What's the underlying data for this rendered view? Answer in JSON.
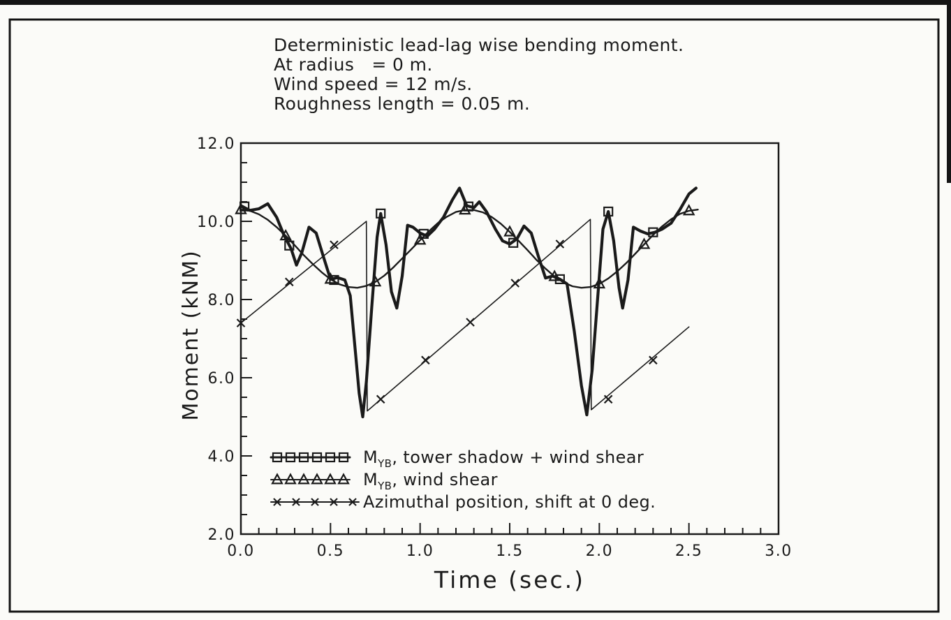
{
  "colors": {
    "ink": "#1a1a1a",
    "paper": "#fbfbf8"
  },
  "chart_data": {
    "type": "line",
    "title_lines": [
      "Deterministic lead-lag wise bending moment.",
      "At radius   = 0 m.",
      "Wind speed = 12 m/s.",
      "Roughness length = 0.05 m."
    ],
    "xlabel": "Time  (sec.)",
    "ylabel": "Moment  (kNM)",
    "xlim": [
      0.0,
      3.0
    ],
    "ylim": [
      2.0,
      12.0
    ],
    "x_major_ticks": [
      0.0,
      0.5,
      1.0,
      1.5,
      2.0,
      2.5,
      3.0
    ],
    "x_tick_labels": [
      "0.0",
      "0.5",
      "1.0",
      "1.5",
      "2.0",
      "2.5",
      "3.0"
    ],
    "x_minor_step": 0.1,
    "y_major_ticks": [
      2.0,
      4.0,
      6.0,
      8.0,
      10.0,
      12.0
    ],
    "y_tick_labels": [
      "2.0",
      "4.0",
      "6.0",
      "8.0",
      "10.0",
      "12.0"
    ],
    "y_minor_step": 0.5,
    "grid": false,
    "legend_position": "lower-left-inside",
    "series": [
      {
        "name": "MYB, tower shadow + wind shear",
        "label_pre": "M",
        "label_sub": "YB",
        "label_post": ", tower shadow + wind shear",
        "marker": "square",
        "line_width": 4.2,
        "points": [
          [
            0.0,
            10.4
          ],
          [
            0.05,
            10.28
          ],
          [
            0.1,
            10.32
          ],
          [
            0.15,
            10.45
          ],
          [
            0.2,
            10.1
          ],
          [
            0.24,
            9.65
          ],
          [
            0.28,
            9.3
          ],
          [
            0.31,
            8.88
          ],
          [
            0.34,
            9.2
          ],
          [
            0.38,
            9.85
          ],
          [
            0.42,
            9.7
          ],
          [
            0.46,
            9.1
          ],
          [
            0.5,
            8.52
          ],
          [
            0.54,
            8.56
          ],
          [
            0.58,
            8.5
          ],
          [
            0.61,
            8.1
          ],
          [
            0.64,
            6.6
          ],
          [
            0.66,
            5.6
          ],
          [
            0.68,
            5.0
          ],
          [
            0.7,
            5.9
          ],
          [
            0.73,
            7.8
          ],
          [
            0.76,
            9.6
          ],
          [
            0.78,
            10.2
          ],
          [
            0.81,
            9.4
          ],
          [
            0.84,
            8.2
          ],
          [
            0.87,
            7.78
          ],
          [
            0.9,
            8.6
          ],
          [
            0.93,
            9.9
          ],
          [
            0.96,
            9.85
          ],
          [
            1.0,
            9.7
          ],
          [
            1.04,
            9.62
          ],
          [
            1.08,
            9.8
          ],
          [
            1.13,
            10.1
          ],
          [
            1.18,
            10.55
          ],
          [
            1.22,
            10.85
          ],
          [
            1.26,
            10.4
          ],
          [
            1.3,
            10.35
          ],
          [
            1.33,
            10.5
          ],
          [
            1.37,
            10.25
          ],
          [
            1.42,
            9.8
          ],
          [
            1.46,
            9.5
          ],
          [
            1.5,
            9.42
          ],
          [
            1.54,
            9.55
          ],
          [
            1.58,
            9.88
          ],
          [
            1.62,
            9.7
          ],
          [
            1.66,
            9.1
          ],
          [
            1.7,
            8.55
          ],
          [
            1.74,
            8.6
          ],
          [
            1.78,
            8.52
          ],
          [
            1.82,
            8.4
          ],
          [
            1.86,
            7.2
          ],
          [
            1.9,
            5.8
          ],
          [
            1.93,
            5.05
          ],
          [
            1.96,
            6.2
          ],
          [
            1.99,
            8.0
          ],
          [
            2.02,
            9.8
          ],
          [
            2.05,
            10.25
          ],
          [
            2.08,
            9.5
          ],
          [
            2.11,
            8.3
          ],
          [
            2.13,
            7.78
          ],
          [
            2.16,
            8.5
          ],
          [
            2.19,
            9.85
          ],
          [
            2.23,
            9.75
          ],
          [
            2.27,
            9.68
          ],
          [
            2.31,
            9.72
          ],
          [
            2.35,
            9.8
          ],
          [
            2.4,
            9.95
          ],
          [
            2.45,
            10.3
          ],
          [
            2.5,
            10.7
          ],
          [
            2.54,
            10.85
          ]
        ],
        "marker_points": [
          [
            0.02,
            10.38
          ],
          [
            0.27,
            9.38
          ],
          [
            0.52,
            8.5
          ],
          [
            0.78,
            10.2
          ],
          [
            1.02,
            9.68
          ],
          [
            1.27,
            10.38
          ],
          [
            1.52,
            9.45
          ],
          [
            1.78,
            8.52
          ],
          [
            2.05,
            10.25
          ],
          [
            2.3,
            9.72
          ]
        ]
      },
      {
        "name": "MYB, wind shear",
        "label_pre": "M",
        "label_sub": "YB",
        "label_post": ", wind shear",
        "marker": "triangle",
        "line_width": 2.4,
        "points": [
          [
            0.0,
            10.3
          ],
          [
            0.05,
            10.27
          ],
          [
            0.1,
            10.18
          ],
          [
            0.15,
            10.04
          ],
          [
            0.2,
            9.85
          ],
          [
            0.25,
            9.63
          ],
          [
            0.3,
            9.39
          ],
          [
            0.35,
            9.14
          ],
          [
            0.4,
            8.91
          ],
          [
            0.45,
            8.7
          ],
          [
            0.5,
            8.52
          ],
          [
            0.55,
            8.39
          ],
          [
            0.6,
            8.32
          ],
          [
            0.65,
            8.3
          ],
          [
            0.7,
            8.35
          ],
          [
            0.75,
            8.45
          ],
          [
            0.8,
            8.61
          ],
          [
            0.85,
            8.82
          ],
          [
            0.9,
            9.05
          ],
          [
            0.95,
            9.28
          ],
          [
            1.0,
            9.52
          ],
          [
            1.05,
            9.75
          ],
          [
            1.1,
            9.96
          ],
          [
            1.15,
            10.12
          ],
          [
            1.2,
            10.24
          ],
          [
            1.25,
            10.29
          ],
          [
            1.3,
            10.29
          ],
          [
            1.35,
            10.23
          ],
          [
            1.4,
            10.11
          ],
          [
            1.45,
            9.94
          ],
          [
            1.5,
            9.73
          ],
          [
            1.55,
            9.5
          ],
          [
            1.6,
            9.26
          ],
          [
            1.65,
            9.01
          ],
          [
            1.7,
            8.79
          ],
          [
            1.75,
            8.59
          ],
          [
            1.8,
            8.44
          ],
          [
            1.85,
            8.34
          ],
          [
            1.9,
            8.3
          ],
          [
            1.95,
            8.32
          ],
          [
            2.0,
            8.4
          ],
          [
            2.05,
            8.54
          ],
          [
            2.1,
            8.72
          ],
          [
            2.15,
            8.93
          ],
          [
            2.2,
            9.17
          ],
          [
            2.25,
            9.41
          ],
          [
            2.3,
            9.65
          ],
          [
            2.35,
            9.87
          ],
          [
            2.4,
            10.05
          ],
          [
            2.45,
            10.19
          ],
          [
            2.5,
            10.27
          ],
          [
            2.55,
            10.3
          ]
        ],
        "marker_points": [
          [
            0.0,
            10.3
          ],
          [
            0.25,
            9.63
          ],
          [
            0.5,
            8.52
          ],
          [
            0.75,
            8.45
          ],
          [
            1.0,
            9.52
          ],
          [
            1.25,
            10.29
          ],
          [
            1.5,
            9.73
          ],
          [
            1.75,
            8.59
          ],
          [
            2.0,
            8.4
          ],
          [
            2.25,
            9.41
          ],
          [
            2.5,
            10.27
          ]
        ]
      },
      {
        "name": "Azimuthal position, shift at 0 deg.",
        "label_pre": "Azimuthal position, shift at 0 deg.",
        "label_sub": "",
        "label_post": "",
        "marker": "x",
        "line_width": 1.6,
        "points": [
          [
            0.0,
            7.4
          ],
          [
            0.7,
            10.0
          ],
          [
            0.705,
            5.15
          ],
          [
            1.95,
            10.05
          ],
          [
            1.955,
            5.18
          ],
          [
            2.5,
            7.3
          ]
        ],
        "marker_points": [
          [
            0.0,
            7.4
          ],
          [
            0.27,
            8.45
          ],
          [
            0.52,
            9.4
          ],
          [
            0.78,
            5.45
          ],
          [
            1.03,
            6.45
          ],
          [
            1.28,
            7.42
          ],
          [
            1.53,
            8.42
          ],
          [
            1.78,
            9.42
          ],
          [
            2.05,
            5.45
          ],
          [
            2.3,
            6.45
          ]
        ]
      }
    ]
  }
}
